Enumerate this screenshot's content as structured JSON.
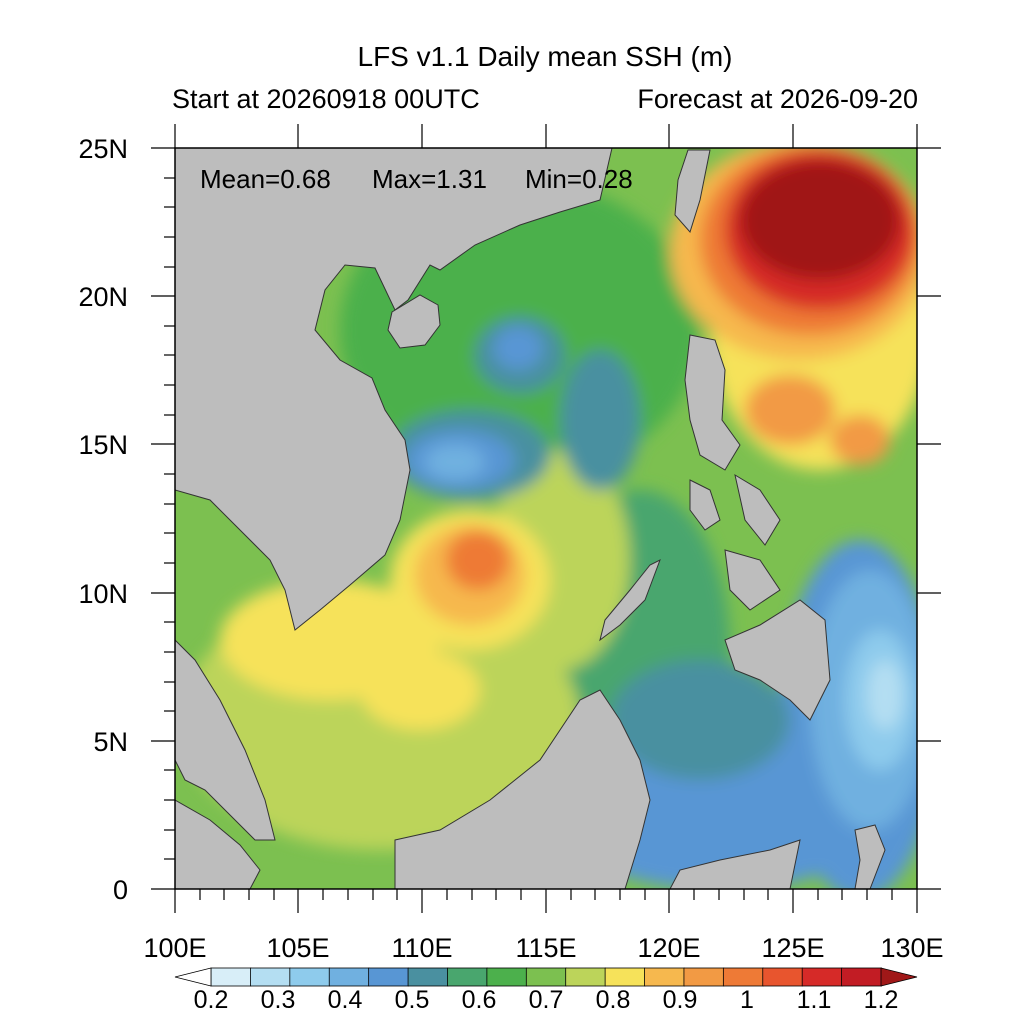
{
  "header": {
    "title": "LFS v1.1 Daily mean SSH (m)",
    "left": "Start at 20260918 00UTC",
    "right": "Forecast at 2026-09-20"
  },
  "stats": {
    "mean_label": "Mean=0.68",
    "max_label": "Max=1.31",
    "min_label": "Min=0.28"
  },
  "axes": {
    "lon_ticks": [
      "100E",
      "105E",
      "110E",
      "115E",
      "120E",
      "125E",
      "130E"
    ],
    "lat_ticks": [
      "0",
      "5N",
      "10N",
      "15N",
      "20N",
      "25N"
    ],
    "lon_range": [
      100,
      130
    ],
    "lat_range": [
      0,
      25
    ]
  },
  "colorbar": {
    "labels": [
      "0.2",
      "0.3",
      "0.4",
      "0.5",
      "0.6",
      "0.7",
      "0.8",
      "0.9",
      "1",
      "1.1",
      "1.2"
    ],
    "colors": [
      "#ffffff",
      "#d8eef8",
      "#b4def2",
      "#8ecbec",
      "#70b0e0",
      "#5896d4",
      "#4a90a0",
      "#49a66e",
      "#4cb04c",
      "#7cc050",
      "#bcd45a",
      "#f6e25a",
      "#f6b84e",
      "#f29a44",
      "#ee7a36",
      "#e8552e",
      "#d62a28",
      "#c21c24",
      "#a01818"
    ]
  },
  "land_color": "#bdbdbd"
}
